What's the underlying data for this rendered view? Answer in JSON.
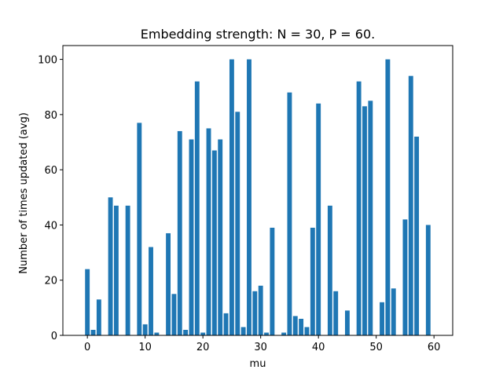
{
  "chart_data": {
    "type": "bar",
    "title": "Embedding strength: N = 30, P = 60.",
    "xlabel": "mu",
    "ylabel": "Number of times updated (avg)",
    "x": [
      0,
      1,
      2,
      3,
      4,
      5,
      6,
      7,
      8,
      9,
      10,
      11,
      12,
      13,
      14,
      15,
      16,
      17,
      18,
      19,
      20,
      21,
      22,
      23,
      24,
      25,
      26,
      27,
      28,
      29,
      30,
      31,
      32,
      33,
      34,
      35,
      36,
      37,
      38,
      39,
      40,
      41,
      42,
      43,
      44,
      45,
      46,
      47,
      48,
      49,
      50,
      51,
      52,
      53,
      54,
      55,
      56,
      57,
      58,
      59
    ],
    "values": [
      24,
      2,
      13,
      0,
      50,
      47,
      0,
      47,
      0,
      77,
      4,
      32,
      1,
      0,
      37,
      15,
      74,
      2,
      71,
      92,
      1,
      75,
      67,
      71,
      8,
      100,
      81,
      3,
      100,
      16,
      18,
      1,
      39,
      0,
      1,
      88,
      7,
      6,
      3,
      39,
      84,
      0,
      47,
      16,
      0,
      9,
      0,
      92,
      83,
      85,
      0,
      12,
      100,
      17,
      0,
      42,
      94,
      72,
      0,
      40
    ],
    "xlim": [
      -4.24,
      63.24
    ],
    "ylim": [
      0,
      105
    ],
    "xticks": [
      0,
      10,
      20,
      30,
      40,
      50,
      60
    ],
    "yticks": [
      0,
      20,
      40,
      60,
      80,
      100
    ],
    "bar_color": "#1f77b4",
    "grid": false,
    "legend": "none"
  }
}
